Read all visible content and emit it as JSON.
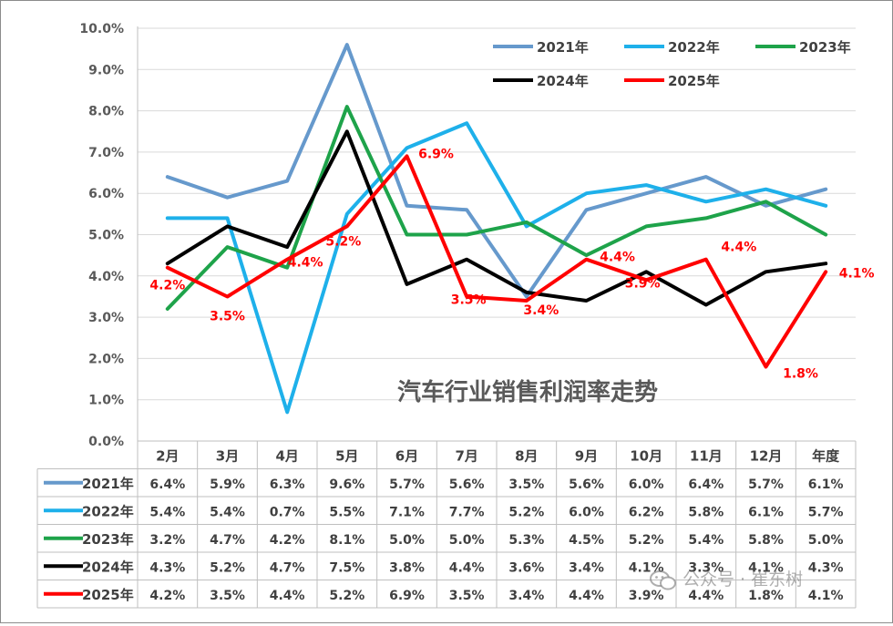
{
  "chart_data": {
    "type": "line",
    "title": "汽车行业销售利润率走势",
    "categories": [
      "2月",
      "3月",
      "4月",
      "5月",
      "6月",
      "7月",
      "8月",
      "9月",
      "10月",
      "11月",
      "12月",
      "年度"
    ],
    "ylim": [
      0,
      10
    ],
    "y_ticks": [
      "0.0%",
      "1.0%",
      "2.0%",
      "3.0%",
      "4.0%",
      "5.0%",
      "6.0%",
      "7.0%",
      "8.0%",
      "9.0%",
      "10.0%"
    ],
    "y_tick_values": [
      0,
      1,
      2,
      3,
      4,
      5,
      6,
      7,
      8,
      9,
      10
    ],
    "grid": true,
    "legend_position": "top-right",
    "series": [
      {
        "name": "2021年",
        "color": "#6699cc",
        "values": [
          6.4,
          5.9,
          6.3,
          9.6,
          5.7,
          5.6,
          3.5,
          5.6,
          6.0,
          6.4,
          5.7,
          6.1
        ],
        "labels": [
          "6.4%",
          "5.9%",
          "6.3%",
          "9.6%",
          "5.7%",
          "5.6%",
          "3.5%",
          "5.6%",
          "6.0%",
          "6.4%",
          "5.7%",
          "6.1%"
        ]
      },
      {
        "name": "2022年",
        "color": "#1eb0ea",
        "values": [
          5.4,
          5.4,
          0.7,
          5.5,
          7.1,
          7.7,
          5.2,
          6.0,
          6.2,
          5.8,
          6.1,
          5.7
        ],
        "labels": [
          "5.4%",
          "5.4%",
          "0.7%",
          "5.5%",
          "7.1%",
          "7.7%",
          "5.2%",
          "6.0%",
          "6.2%",
          "5.8%",
          "6.1%",
          "5.7%"
        ]
      },
      {
        "name": "2023年",
        "color": "#1ea34a",
        "values": [
          3.2,
          4.7,
          4.2,
          8.1,
          5.0,
          5.0,
          5.3,
          4.5,
          5.2,
          5.4,
          5.8,
          5.0
        ],
        "labels": [
          "3.2%",
          "4.7%",
          "4.2%",
          "8.1%",
          "5.0%",
          "5.0%",
          "5.3%",
          "4.5%",
          "5.2%",
          "5.4%",
          "5.8%",
          "5.0%"
        ]
      },
      {
        "name": "2024年",
        "color": "#000000",
        "values": [
          4.3,
          5.2,
          4.7,
          7.5,
          3.8,
          4.4,
          3.6,
          3.4,
          4.1,
          3.3,
          4.1,
          4.3
        ],
        "labels": [
          "4.3%",
          "5.2%",
          "4.7%",
          "7.5%",
          "3.8%",
          "4.4%",
          "3.6%",
          "3.4%",
          "4.1%",
          "3.3%",
          "4.1%",
          "4.3%"
        ]
      },
      {
        "name": "2025年",
        "color": "#ff0000",
        "values": [
          4.2,
          3.5,
          4.4,
          5.2,
          6.9,
          3.5,
          3.4,
          4.4,
          3.9,
          4.4,
          1.8,
          4.1
        ],
        "labels": [
          "4.2%",
          "3.5%",
          "4.4%",
          "5.2%",
          "6.9%",
          "3.5%",
          "3.4%",
          "4.4%",
          "3.9%",
          "4.4%",
          "1.8%",
          "4.1%"
        ]
      }
    ],
    "annotated_series": "2025年"
  },
  "watermark": "公众号 · 崔东树",
  "watermark_icon": "wechat-icon"
}
